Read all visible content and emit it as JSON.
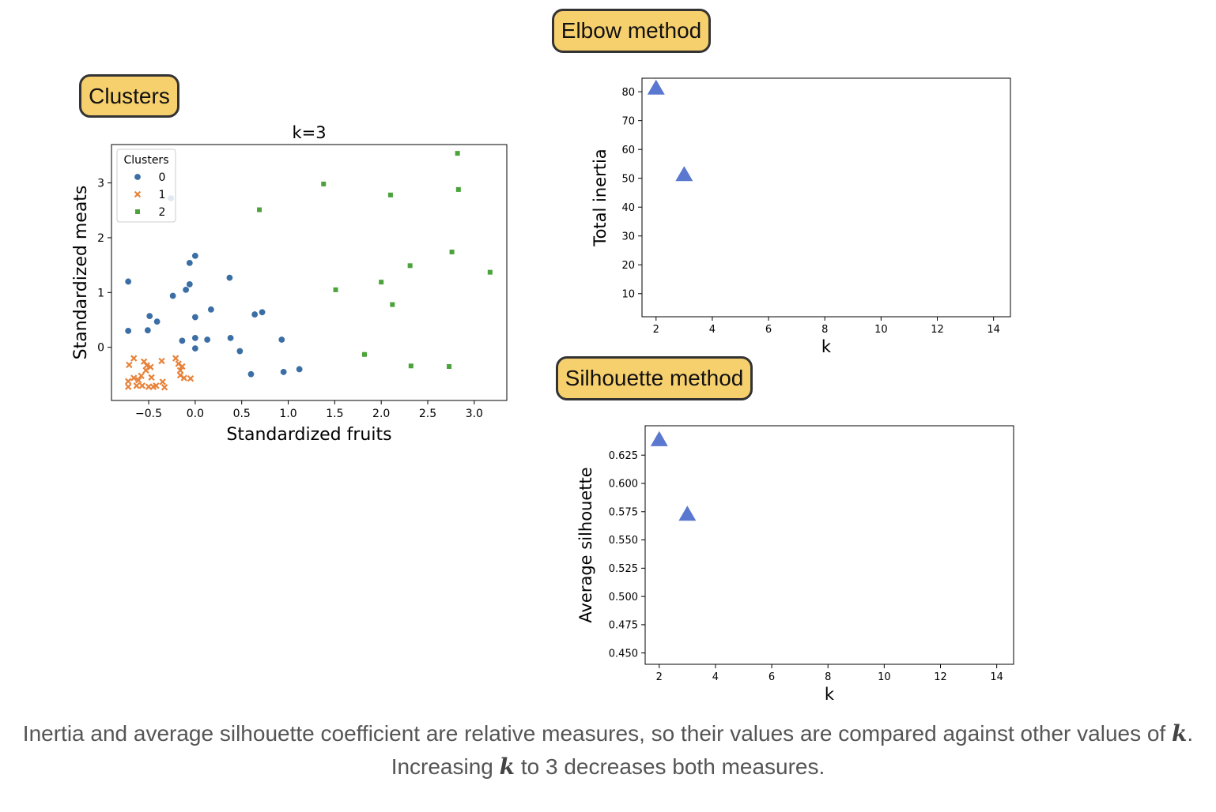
{
  "badges": {
    "clusters": "Clusters",
    "elbow": "Elbow method",
    "silhouette": "Silhouette method"
  },
  "caption": {
    "part1": "Inertia and average silhouette coefficient are relative measures, so their values are compared against other values of",
    "k1": "k",
    "part2": ". Increasing",
    "k2": "k",
    "part3": "to 3 decreases both measures."
  },
  "colors": {
    "cluster0": "#3a6ea5",
    "cluster1": "#e8823a",
    "cluster2": "#4ca33b",
    "marker": "#5a78d0",
    "badge_fill": "#f7d06e"
  },
  "chart_data": [
    {
      "id": "clusters",
      "type": "scatter",
      "title": "k=3",
      "xlabel": "Standardized fruits",
      "ylabel": "Standardized meats",
      "xlim": [
        -0.9,
        3.35
      ],
      "ylim": [
        -0.97,
        3.7
      ],
      "xticks": [
        -0.5,
        0.0,
        0.5,
        1.0,
        1.5,
        2.0,
        2.5,
        3.0
      ],
      "xtick_labels": [
        "−0.5",
        "0.0",
        "0.5",
        "1.0",
        "1.5",
        "2.0",
        "2.5",
        "3.0"
      ],
      "yticks": [
        0,
        1,
        2,
        3
      ],
      "ytick_labels": [
        "0",
        "1",
        "2",
        "3"
      ],
      "legend": {
        "title": "Clusters",
        "placement": "top-left",
        "entries": [
          "0",
          "1",
          "2"
        ]
      },
      "series": [
        {
          "name": "0",
          "marker": "circle",
          "points": [
            [
              -0.72,
              1.2
            ],
            [
              -0.72,
              0.3
            ],
            [
              -0.49,
              0.57
            ],
            [
              -0.51,
              0.31
            ],
            [
              -0.41,
              0.47
            ],
            [
              -0.24,
              0.94
            ],
            [
              -0.14,
              0.12
            ],
            [
              -0.1,
              1.05
            ],
            [
              -0.06,
              1.15
            ],
            [
              -0.06,
              1.54
            ],
            [
              0.0,
              1.67
            ],
            [
              0.0,
              0.55
            ],
            [
              0.0,
              0.17
            ],
            [
              0.0,
              -0.02
            ],
            [
              0.13,
              0.14
            ],
            [
              0.17,
              0.69
            ],
            [
              0.37,
              1.27
            ],
            [
              0.38,
              0.17
            ],
            [
              0.48,
              -0.07
            ],
            [
              0.6,
              -0.49
            ],
            [
              0.64,
              0.6
            ],
            [
              0.72,
              0.64
            ],
            [
              0.93,
              0.14
            ],
            [
              0.95,
              -0.45
            ],
            [
              1.12,
              -0.4
            ],
            [
              -0.26,
              2.72
            ]
          ]
        },
        {
          "name": "1",
          "marker": "x",
          "points": [
            [
              -0.71,
              -0.32
            ],
            [
              -0.72,
              -0.62
            ],
            [
              -0.72,
              -0.72
            ],
            [
              -0.66,
              -0.2
            ],
            [
              -0.66,
              -0.56
            ],
            [
              -0.63,
              -0.7
            ],
            [
              -0.61,
              -0.6
            ],
            [
              -0.58,
              -0.52
            ],
            [
              -0.57,
              -0.7
            ],
            [
              -0.55,
              -0.26
            ],
            [
              -0.53,
              -0.42
            ],
            [
              -0.52,
              -0.33
            ],
            [
              -0.5,
              -0.72
            ],
            [
              -0.48,
              -0.36
            ],
            [
              -0.47,
              -0.55
            ],
            [
              -0.45,
              -0.72
            ],
            [
              -0.42,
              -0.7
            ],
            [
              -0.36,
              -0.25
            ],
            [
              -0.35,
              -0.63
            ],
            [
              -0.33,
              -0.73
            ],
            [
              -0.21,
              -0.2
            ],
            [
              -0.18,
              -0.3
            ],
            [
              -0.16,
              -0.42
            ],
            [
              -0.14,
              -0.35
            ],
            [
              -0.16,
              -0.51
            ],
            [
              -0.12,
              -0.56
            ],
            [
              -0.05,
              -0.57
            ]
          ]
        },
        {
          "name": "2",
          "marker": "square",
          "points": [
            [
              0.69,
              2.51
            ],
            [
              1.38,
              2.98
            ],
            [
              1.51,
              1.05
            ],
            [
              1.82,
              -0.13
            ],
            [
              2.0,
              1.19
            ],
            [
              2.1,
              2.78
            ],
            [
              2.12,
              0.78
            ],
            [
              2.31,
              1.49
            ],
            [
              2.32,
              -0.34
            ],
            [
              2.73,
              -0.35
            ],
            [
              2.76,
              1.74
            ],
            [
              2.82,
              3.54
            ],
            [
              2.83,
              2.88
            ],
            [
              3.17,
              1.37
            ]
          ]
        }
      ]
    },
    {
      "id": "elbow",
      "type": "scatter",
      "title": "",
      "xlabel": "k",
      "ylabel": "Total inertia",
      "xlim": [
        1.5,
        14.6
      ],
      "ylim": [
        2,
        84.7
      ],
      "xticks": [
        2,
        4,
        6,
        8,
        10,
        12,
        14
      ],
      "yticks": [
        10,
        20,
        30,
        40,
        50,
        60,
        70,
        80
      ],
      "marker": "triangle",
      "x": [
        2,
        3
      ],
      "y": [
        81,
        51
      ]
    },
    {
      "id": "silhouette",
      "type": "scatter",
      "title": "",
      "xlabel": "k",
      "ylabel": "Average silhouette",
      "xlim": [
        1.5,
        14.6
      ],
      "ylim": [
        0.44,
        0.651
      ],
      "xticks": [
        2,
        4,
        6,
        8,
        10,
        12,
        14
      ],
      "yticks": [
        0.45,
        0.475,
        0.5,
        0.525,
        0.55,
        0.575,
        0.6,
        0.625
      ],
      "ytick_labels": [
        "0.450",
        "0.475",
        "0.500",
        "0.525",
        "0.550",
        "0.575",
        "0.600",
        "0.625"
      ],
      "marker": "triangle",
      "x": [
        2,
        3
      ],
      "y": [
        0.638,
        0.572
      ]
    }
  ]
}
